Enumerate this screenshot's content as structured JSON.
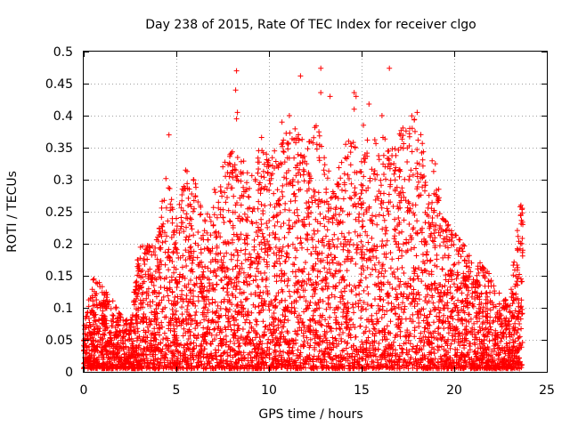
{
  "chart_data": {
    "type": "scatter",
    "title": "Day 238 of 2015, Rate Of TEC Index for receiver clgo",
    "xlabel": "GPS time / hours",
    "ylabel": "ROTI / TECUs",
    "xlim": [
      0,
      25
    ],
    "ylim": [
      0,
      0.5
    ],
    "x_ticks": [
      "0",
      "5",
      "10",
      "15",
      "20",
      "25"
    ],
    "y_ticks": [
      "0",
      "0.05",
      "0.1",
      "0.15",
      "0.2",
      "0.25",
      "0.3",
      "0.35",
      "0.4",
      "0.45",
      "0.5"
    ],
    "grid": true,
    "marker": "+",
    "series": [
      {
        "name": "ROTI",
        "color": "#ff0000",
        "envelope": [
          [
            0.0,
            0.07
          ],
          [
            0.5,
            0.15
          ],
          [
            1.0,
            0.14
          ],
          [
            1.5,
            0.12
          ],
          [
            2.0,
            0.09
          ],
          [
            2.5,
            0.08
          ],
          [
            3.0,
            0.2
          ],
          [
            3.5,
            0.2
          ],
          [
            4.0,
            0.22
          ],
          [
            4.5,
            0.32
          ],
          [
            5.0,
            0.24
          ],
          [
            5.5,
            0.32
          ],
          [
            6.0,
            0.3
          ],
          [
            6.5,
            0.24
          ],
          [
            7.0,
            0.28
          ],
          [
            7.5,
            0.32
          ],
          [
            8.0,
            0.35
          ],
          [
            8.5,
            0.34
          ],
          [
            9.0,
            0.3
          ],
          [
            9.5,
            0.36
          ],
          [
            10.0,
            0.34
          ],
          [
            10.5,
            0.36
          ],
          [
            11.0,
            0.38
          ],
          [
            11.5,
            0.38
          ],
          [
            12.0,
            0.36
          ],
          [
            12.5,
            0.4
          ],
          [
            13.0,
            0.34
          ],
          [
            13.5,
            0.32
          ],
          [
            14.0,
            0.34
          ],
          [
            14.5,
            0.4
          ],
          [
            15.0,
            0.36
          ],
          [
            15.5,
            0.38
          ],
          [
            16.0,
            0.36
          ],
          [
            16.5,
            0.38
          ],
          [
            17.0,
            0.38
          ],
          [
            17.5,
            0.4
          ],
          [
            18.0,
            0.4
          ],
          [
            18.5,
            0.34
          ],
          [
            19.0,
            0.33
          ],
          [
            19.5,
            0.24
          ],
          [
            20.0,
            0.22
          ],
          [
            20.5,
            0.2
          ],
          [
            21.0,
            0.18
          ],
          [
            21.5,
            0.17
          ],
          [
            22.0,
            0.15
          ],
          [
            22.5,
            0.12
          ],
          [
            23.0,
            0.11
          ],
          [
            23.5,
            0.26
          ],
          [
            23.7,
            0.26
          ]
        ],
        "floor": 0.005,
        "n_points": 5200,
        "outliers": [
          [
            8.25,
            0.47
          ],
          [
            8.2,
            0.44
          ],
          [
            8.3,
            0.405
          ],
          [
            8.25,
            0.395
          ],
          [
            4.6,
            0.37
          ],
          [
            11.7,
            0.462
          ],
          [
            12.8,
            0.474
          ],
          [
            12.8,
            0.436
          ],
          [
            13.3,
            0.43
          ],
          [
            14.6,
            0.436
          ],
          [
            14.7,
            0.43
          ],
          [
            15.4,
            0.418
          ],
          [
            16.5,
            0.474
          ],
          [
            16.1,
            0.4
          ],
          [
            18.0,
            0.405
          ],
          [
            11.1,
            0.4
          ],
          [
            10.7,
            0.39
          ],
          [
            9.6,
            0.366
          ],
          [
            23.6,
            0.26
          ],
          [
            23.6,
            0.245
          ],
          [
            23.7,
            0.23
          ],
          [
            23.65,
            0.2
          ],
          [
            23.7,
            0.19
          ],
          [
            5.5,
            0.315
          ],
          [
            17.6,
            0.38
          ],
          [
            14.6,
            0.41
          ],
          [
            15.1,
            0.385
          ],
          [
            10.3,
            0.345
          ]
        ]
      }
    ]
  }
}
